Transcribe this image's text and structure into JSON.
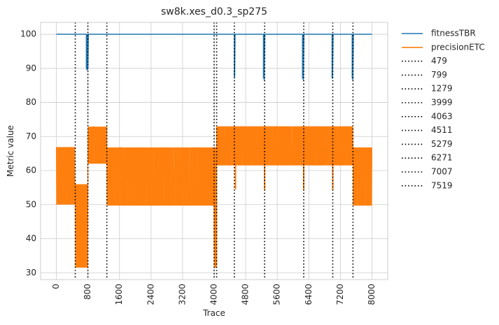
{
  "chart_data": {
    "type": "line",
    "title": "sw8k.xes_d0.3_sp275",
    "xlabel": "Trace",
    "ylabel": "Metric value",
    "xlim": [
      -400,
      8400
    ],
    "ylim": [
      28,
      103.5
    ],
    "xticks": [
      0,
      800,
      1600,
      2400,
      3200,
      4000,
      4800,
      5600,
      6400,
      7200,
      8000
    ],
    "xtick_labels": [
      "0",
      "800",
      "1600",
      "2400",
      "3200",
      "4000",
      "4800",
      "5600",
      "6400",
      "7200",
      "8000"
    ],
    "yticks": [
      30,
      40,
      50,
      60,
      70,
      80,
      90,
      100
    ],
    "ytick_labels": [
      "30",
      "40",
      "50",
      "60",
      "70",
      "80",
      "90",
      "100"
    ],
    "grid": true,
    "legend_position": "outside-right-top",
    "colors": {
      "fitness": "#1f77b4",
      "precision": "#ff7f0e",
      "drift": "#000000",
      "grid": "#cccccc",
      "spine": "#cccccc"
    },
    "series": [
      {
        "name": "fitnessTBR",
        "color": "#1f77b4",
        "x": [
          0,
          760,
          760,
          770,
          770,
          780,
          780,
          790,
          790,
          800,
          800,
          810,
          810,
          4511,
          4511,
          4520,
          4520,
          4530,
          4530,
          4545,
          4545,
          5250,
          5250,
          5270,
          5270,
          5285,
          5285,
          6240,
          6240,
          6260,
          6260,
          6275,
          6275,
          6990,
          6990,
          7000,
          7000,
          7015,
          7015,
          7500,
          7500,
          7515,
          7515,
          7530,
          7530,
          8000
        ],
        "y": [
          100,
          100,
          90,
          100,
          89.5,
          100,
          90,
          100,
          89.5,
          100,
          90,
          100,
          100,
          100,
          87,
          100,
          87.5,
          100,
          100,
          100,
          100,
          100,
          87,
          100,
          86.5,
          100,
          100,
          100,
          87,
          100,
          86.5,
          100,
          100,
          100,
          87,
          100,
          87,
          100,
          100,
          100,
          87,
          100,
          86.5,
          100,
          100,
          100
        ]
      },
      {
        "name": "precisionETC",
        "color": "#ff7f0e",
        "segments": [
          {
            "x_start": 0,
            "x_end": 479,
            "y_low": 50,
            "y_high": 66.9
          },
          {
            "x_start": 479,
            "x_end": 799,
            "y_low": 31.5,
            "y_high": 56
          },
          {
            "x_start": 799,
            "x_end": 1279,
            "y_low": 62,
            "y_high": 72.9
          },
          {
            "x_start": 1279,
            "x_end": 3999,
            "y_low": 49.7,
            "y_high": 66.8
          },
          {
            "x_start": 3999,
            "x_end": 4063,
            "y_low": 31.5,
            "y_high": 66.8
          },
          {
            "x_start": 4063,
            "x_end": 7519,
            "y_low": 61.5,
            "y_high": 73
          },
          {
            "x_start": 7519,
            "x_end": 8000,
            "y_low": 49.7,
            "y_high": 66.8
          }
        ],
        "dips": [
          {
            "x": 4540,
            "y": 54.5
          },
          {
            "x": 5280,
            "y": 54.3
          },
          {
            "x": 6270,
            "y": 54.3
          },
          {
            "x": 7007,
            "y": 54.3
          }
        ]
      }
    ],
    "drift_lines": [
      {
        "name": "479",
        "x": 479
      },
      {
        "name": "799",
        "x": 799
      },
      {
        "name": "1279",
        "x": 1279
      },
      {
        "name": "3999",
        "x": 3999
      },
      {
        "name": "4063",
        "x": 4063
      },
      {
        "name": "4511",
        "x": 4511
      },
      {
        "name": "5279",
        "x": 5279
      },
      {
        "name": "6271",
        "x": 6271
      },
      {
        "name": "7007",
        "x": 7007
      },
      {
        "name": "7519",
        "x": 7519
      }
    ]
  }
}
